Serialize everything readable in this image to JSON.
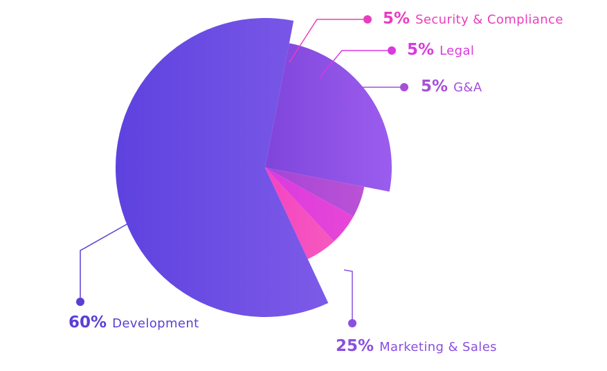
{
  "chart_data": {
    "type": "pie",
    "title": "",
    "slices": [
      {
        "label": "Development",
        "value": 60,
        "value_label": "60%",
        "color": "#6A4EE2"
      },
      {
        "label": "Marketing & Sales",
        "value": 25,
        "value_label": "25%",
        "color": "#8F55E6"
      },
      {
        "label": "G&A",
        "value": 5,
        "value_label": "5%",
        "color": "#B349D6"
      },
      {
        "label": "Legal",
        "value": 5,
        "value_label": "5%",
        "color": "#E13FDC"
      },
      {
        "label": "Security & Compliance",
        "value": 5,
        "value_label": "5%",
        "color": "#F14AC7"
      }
    ],
    "legend": "callout labels with leader lines"
  }
}
